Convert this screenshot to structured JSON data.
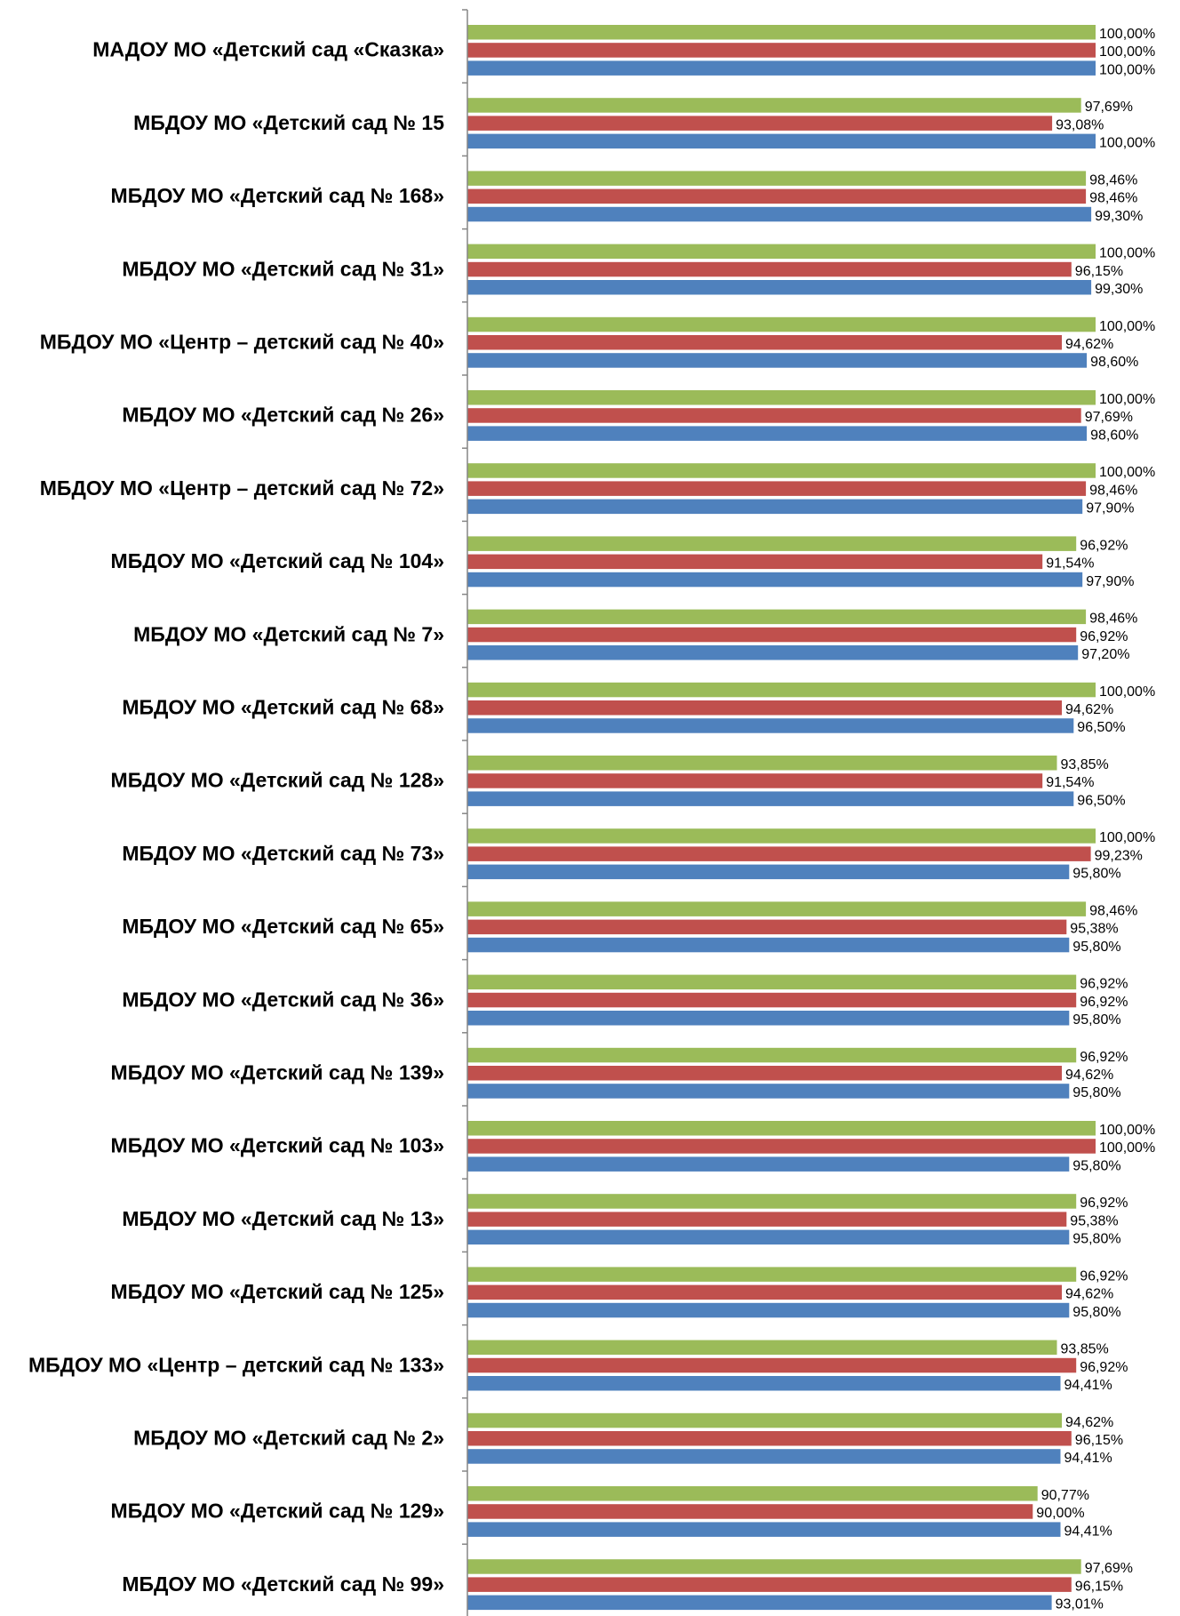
{
  "colors": {
    "green": "#9BBB59",
    "red": "#C0504D",
    "blue": "#4F81BD",
    "axis": "#868686"
  },
  "chart_data": {
    "type": "bar",
    "orientation": "horizontal",
    "grid": false,
    "legend": "none",
    "xlim": [
      0,
      100
    ],
    "categories": [
      "МАДОУ МО  «Детский сад «Сказка»",
      "МБДОУ МО  «Детский  сад № 15",
      "МБДОУ МО  «Детский сад № 168»",
      "МБДОУ МО  «Детский  сад № 31»",
      "МБДОУ МО  «Центр – детский сад № 40»",
      "МБДОУ МО  «Детский сад № 26»",
      "МБДОУ МО  «Центр – детский сад № 72»",
      "МБДОУ МО  «Детский сад № 104»",
      "МБДОУ МО  «Детский сад № 7»",
      "МБДОУ МО  «Детский сад № 68»",
      "МБДОУ МО  «Детский сад № 128»",
      "МБДОУ МО  «Детский сад № 73»",
      "МБДОУ МО  «Детский сад № 65»",
      "МБДОУ МО  «Детский сад № 36»",
      "МБДОУ МО  «Детский сад № 139»",
      "МБДОУ МО  «Детский сад № 103»",
      "МБДОУ МО  «Детский сад  № 13»",
      "МБДОУ МО  «Детский  сад № 125»",
      "МБДОУ МО  «Центр – детский сад № 133»",
      "МБДОУ МО  «Детский сад № 2»",
      "МБДОУ МО  «Детский сад № 129»",
      "МБДОУ МО  «Детский сад № 99»"
    ],
    "series": [
      {
        "color": "#9BBB59",
        "values": [
          100.0,
          97.69,
          98.46,
          100.0,
          100.0,
          100.0,
          100.0,
          96.92,
          98.46,
          100.0,
          93.85,
          100.0,
          98.46,
          96.92,
          96.92,
          100.0,
          96.92,
          96.92,
          93.85,
          94.62,
          90.77,
          97.69
        ],
        "labels": [
          "100,00%",
          "97,69%",
          "98,46%",
          "100,00%",
          "100,00%",
          "100,00%",
          "100,00%",
          "96,92%",
          "98,46%",
          "100,00%",
          "93,85%",
          "100,00%",
          "98,46%",
          "96,92%",
          "96,92%",
          "100,00%",
          "96,92%",
          "96,92%",
          "93,85%",
          "94,62%",
          "90,77%",
          "97,69%"
        ]
      },
      {
        "color": "#C0504D",
        "values": [
          100.0,
          93.08,
          98.46,
          96.15,
          94.62,
          97.69,
          98.46,
          91.54,
          96.92,
          94.62,
          91.54,
          99.23,
          95.38,
          96.92,
          94.62,
          100.0,
          95.38,
          94.62,
          96.92,
          96.15,
          90.0,
          96.15
        ],
        "labels": [
          "100,00%",
          "93,08%",
          "98,46%",
          "96,15%",
          "94,62%",
          "97,69%",
          "98,46%",
          "91,54%",
          "96,92%",
          "94,62%",
          "91,54%",
          "99,23%",
          "95,38%",
          "96,92%",
          "94,62%",
          "100,00%",
          "95,38%",
          "94,62%",
          "96,92%",
          "96,15%",
          "90,00%",
          "96,15%"
        ]
      },
      {
        "color": "#4F81BD",
        "values": [
          100.0,
          100.0,
          99.3,
          99.3,
          98.6,
          98.6,
          97.9,
          97.9,
          97.2,
          96.5,
          96.5,
          95.8,
          95.8,
          95.8,
          95.8,
          95.8,
          95.8,
          95.8,
          94.41,
          94.41,
          94.41,
          93.01
        ],
        "labels": [
          "100,00%",
          "100,00%",
          "99,30%",
          "99,30%",
          "98,60%",
          "98,60%",
          "97,90%",
          "97,90%",
          "97,20%",
          "96,50%",
          "96,50%",
          "95,80%",
          "95,80%",
          "95,80%",
          "95,80%",
          "95,80%",
          "95,80%",
          "95,80%",
          "94,41%",
          "94,41%",
          "94,41%",
          "93,01%"
        ]
      }
    ]
  }
}
